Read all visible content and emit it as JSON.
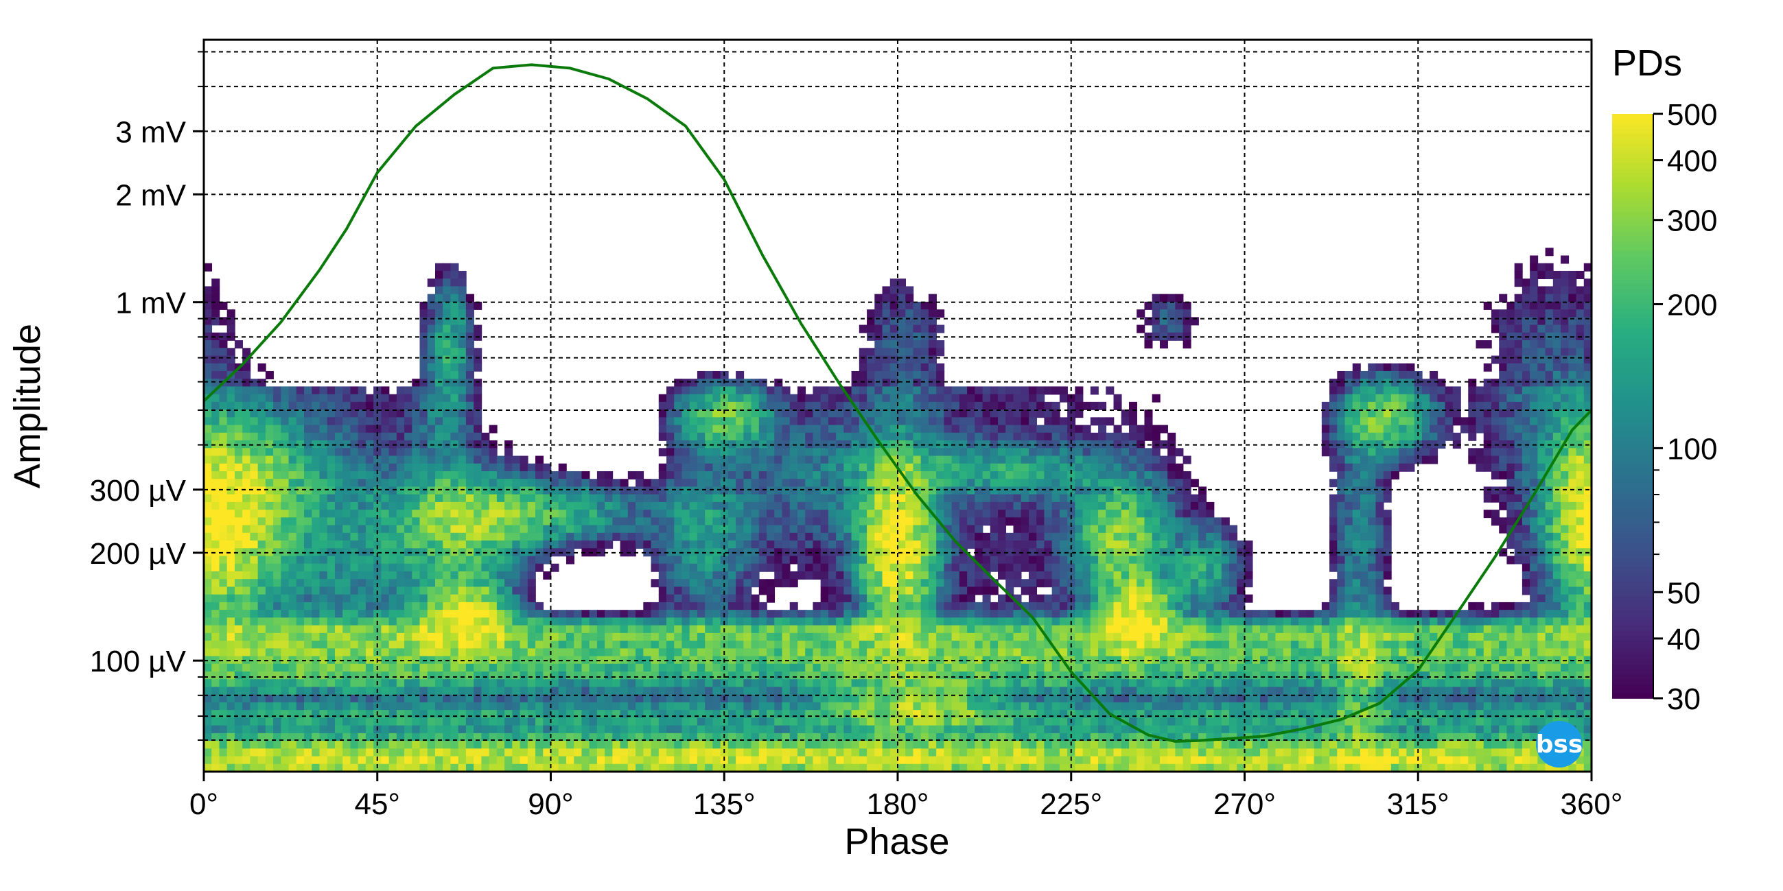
{
  "chart_data": {
    "type": "heatmap",
    "title": "",
    "xlabel": "Phase",
    "ylabel": "Amplitude",
    "x_scale": "linear",
    "y_scale": "log",
    "xlim": [
      0,
      360
    ],
    "ylim_volts": [
      4.9e-05,
      0.0054
    ],
    "x_ticks": [
      {
        "value": 0,
        "label": "0°"
      },
      {
        "value": 45,
        "label": "45°"
      },
      {
        "value": 90,
        "label": "90°"
      },
      {
        "value": 135,
        "label": "135°"
      },
      {
        "value": 180,
        "label": "180°"
      },
      {
        "value": 225,
        "label": "225°"
      },
      {
        "value": 270,
        "label": "270°"
      },
      {
        "value": 315,
        "label": "315°"
      },
      {
        "value": 360,
        "label": "360°"
      }
    ],
    "y_ticks": [
      {
        "value": 0.0001,
        "label": "100 µV"
      },
      {
        "value": 0.0002,
        "label": "200 µV"
      },
      {
        "value": 0.0003,
        "label": "300 µV"
      },
      {
        "value": 0.001,
        "label": "1 mV"
      },
      {
        "value": 0.002,
        "label": "2 mV"
      },
      {
        "value": 0.003,
        "label": "3 mV"
      }
    ],
    "y_minor_gridlines": [
      6e-05,
      7e-05,
      8e-05,
      9e-05,
      0.0004,
      0.0005,
      0.0006,
      0.0007,
      0.0008,
      0.0009,
      0.004,
      0.005
    ],
    "grid": true,
    "colorbar": {
      "title": "PDs",
      "scale": "log",
      "range": [
        30,
        500
      ],
      "tick_labels": [
        {
          "value": 30,
          "label": "30"
        },
        {
          "value": 40,
          "label": "40"
        },
        {
          "value": 50,
          "label": "50"
        },
        {
          "value": 100,
          "label": "100"
        },
        {
          "value": 200,
          "label": "200"
        },
        {
          "value": 300,
          "label": "300"
        },
        {
          "value": 400,
          "label": "400"
        },
        {
          "value": 500,
          "label": "500"
        }
      ],
      "minor_ticks": [
        60,
        70,
        80,
        90
      ],
      "colormap": [
        "#440154",
        "#472d7b",
        "#3b528b",
        "#2c728e",
        "#21918c",
        "#28ae80",
        "#5ec962",
        "#addc30",
        "#fde725"
      ]
    },
    "clusters": [
      {
        "phase": 5,
        "amp": 0.00023,
        "spread_phase": 9,
        "spread_log": 0.16,
        "peak": 380
      },
      {
        "phase": 15,
        "amp": 0.00032,
        "spread_phase": 12,
        "spread_log": 0.12,
        "peak": 160
      },
      {
        "phase": 40,
        "amp": 0.0002,
        "spread_phase": 18,
        "spread_log": 0.18,
        "peak": 90
      },
      {
        "phase": 64,
        "amp": 0.00078,
        "spread_phase": 4,
        "spread_log": 0.12,
        "peak": 150
      },
      {
        "phase": 62,
        "amp": 0.00043,
        "spread_phase": 5,
        "spread_log": 0.2,
        "peak": 60
      },
      {
        "phase": 68,
        "amp": 0.00024,
        "spread_phase": 11,
        "spread_log": 0.09,
        "peak": 240
      },
      {
        "phase": 90,
        "amp": 0.00026,
        "spread_phase": 16,
        "spread_log": 0.06,
        "peak": 180
      },
      {
        "phase": 68,
        "amp": 0.000135,
        "spread_phase": 7,
        "spread_log": 0.06,
        "peak": 450
      },
      {
        "phase": 130,
        "amp": 0.00022,
        "spread_phase": 9,
        "spread_log": 0.14,
        "peak": 140
      },
      {
        "phase": 135,
        "amp": 0.00048,
        "spread_phase": 8,
        "spread_log": 0.06,
        "peak": 260
      },
      {
        "phase": 160,
        "amp": 0.00032,
        "spread_phase": 16,
        "spread_log": 0.15,
        "peak": 70
      },
      {
        "phase": 180,
        "amp": 0.00021,
        "spread_phase": 6,
        "spread_log": 0.15,
        "peak": 490
      },
      {
        "phase": 182,
        "amp": 0.00075,
        "spread_phase": 8,
        "spread_log": 0.15,
        "peak": 70
      },
      {
        "phase": 205,
        "amp": 0.00034,
        "spread_phase": 22,
        "spread_log": 0.05,
        "peak": 130
      },
      {
        "phase": 238,
        "amp": 0.00022,
        "spread_phase": 8,
        "spread_log": 0.1,
        "peak": 280
      },
      {
        "phase": 250,
        "amp": 0.00088,
        "spread_phase": 5,
        "spread_log": 0.06,
        "peak": 70
      },
      {
        "phase": 242,
        "amp": 0.000135,
        "spread_phase": 6,
        "spread_log": 0.06,
        "peak": 460
      },
      {
        "phase": 260,
        "amp": 0.00018,
        "spread_phase": 6,
        "spread_log": 0.08,
        "peak": 150
      },
      {
        "phase": 307,
        "amp": 0.00048,
        "spread_phase": 8,
        "spread_log": 0.07,
        "peak": 260
      },
      {
        "phase": 300,
        "amp": 0.00025,
        "spread_phase": 5,
        "spread_log": 0.2,
        "peak": 100
      },
      {
        "phase": 300,
        "amp": 8e-05,
        "spread_phase": 5,
        "spread_log": 0.2,
        "peak": 120
      },
      {
        "phase": 350,
        "amp": 0.0006,
        "spread_phase": 14,
        "spread_log": 0.25,
        "peak": 70
      },
      {
        "phase": 358,
        "amp": 0.00027,
        "spread_phase": 6,
        "spread_log": 0.15,
        "peak": 150
      },
      {
        "phase": 185,
        "amp": 7.5e-05,
        "spread_phase": 14,
        "spread_log": 0.05,
        "peak": 220
      }
    ],
    "noise_floor_bands": [
      {
        "amp": 0.00012,
        "peak": 200
      },
      {
        "amp": 0.000105,
        "peak": 160
      },
      {
        "amp": 9.2e-05,
        "peak": 110
      },
      {
        "amp": 7e-05,
        "peak": 90
      },
      {
        "amp": 5.8e-05,
        "peak": 170
      },
      {
        "amp": 5.2e-05,
        "peak": 300
      }
    ],
    "series": [
      {
        "type": "line",
        "color": "#0a7a0a",
        "phase_deg": [
          0,
          10,
          20,
          30,
          37,
          45,
          55,
          65,
          75,
          85,
          95,
          105,
          115,
          125,
          135,
          145,
          155,
          165,
          175,
          185,
          195,
          205,
          215,
          225,
          235,
          245,
          252,
          258,
          265,
          275,
          285,
          295,
          305,
          315,
          325,
          335,
          345,
          355,
          360
        ],
        "amp_volts": [
          0.00053,
          0.00067,
          0.00088,
          0.00123,
          0.0016,
          0.0023,
          0.0031,
          0.0038,
          0.0045,
          0.0046,
          0.0045,
          0.0042,
          0.0037,
          0.0031,
          0.0022,
          0.00135,
          0.00087,
          0.00059,
          0.00041,
          0.00029,
          0.000215,
          0.000168,
          0.000132,
          9.3e-05,
          7.1e-05,
          6.2e-05,
          5.95e-05,
          5.98e-05,
          6.05e-05,
          6.15e-05,
          6.45e-05,
          6.85e-05,
          7.6e-05,
          9.4e-05,
          0.000135,
          0.000195,
          0.00029,
          0.00044,
          0.0005
        ]
      }
    ],
    "watermark": "bss"
  }
}
